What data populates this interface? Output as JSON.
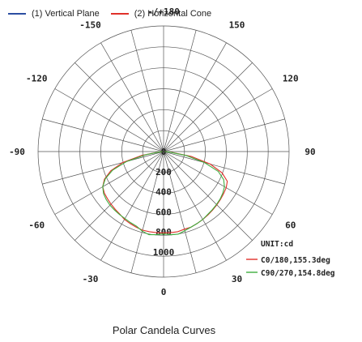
{
  "legend": {
    "vertical_label": "(1) Vertical Plane",
    "horizontal_label": "(2) Horizontal Cone"
  },
  "caption": "Polar Candela Curves",
  "chart_data": {
    "type": "polar",
    "title": "Polar Candela Curves",
    "angle_labels": [
      {
        "text": "-/+180",
        "angle": 180
      },
      {
        "text": "150",
        "angle": 150
      },
      {
        "text": "-150",
        "angle": -150
      },
      {
        "text": "120",
        "angle": 120
      },
      {
        "text": "-120",
        "angle": -120
      },
      {
        "text": "90",
        "angle": 90
      },
      {
        "text": "-90",
        "angle": -90
      },
      {
        "text": "60",
        "angle": 60
      },
      {
        "text": "-60",
        "angle": -60
      },
      {
        "text": "30",
        "angle": 30
      },
      {
        "text": "-30",
        "angle": -30
      },
      {
        "text": "0",
        "angle": 0
      }
    ],
    "radial_ticks": [
      200,
      400,
      600,
      800,
      1000
    ],
    "rmax": 1250,
    "annotations": {
      "unit": "UNIT:cd",
      "c0": "C0/180,155.3deg",
      "c90": "C90/270,154.8deg"
    },
    "colors": {
      "vertical": "#2b4ea2",
      "horizontal": "#e0302a",
      "green": "#3fae3f",
      "grid": "#555555"
    },
    "series": [
      {
        "key": "c0",
        "color": "#e0302a",
        "points": [
          [
            -90,
            10
          ],
          [
            -85,
            50
          ],
          [
            -80,
            220
          ],
          [
            -75,
            420
          ],
          [
            -70,
            560
          ],
          [
            -65,
            650
          ],
          [
            -60,
            700
          ],
          [
            -55,
            720
          ],
          [
            -50,
            730
          ],
          [
            -45,
            740
          ],
          [
            -40,
            750
          ],
          [
            -35,
            760
          ],
          [
            -30,
            780
          ],
          [
            -25,
            790
          ],
          [
            -20,
            800
          ],
          [
            -15,
            810
          ],
          [
            -10,
            810
          ],
          [
            -5,
            810
          ],
          [
            0,
            810
          ],
          [
            5,
            810
          ],
          [
            10,
            810
          ],
          [
            15,
            800
          ],
          [
            20,
            800
          ],
          [
            25,
            790
          ],
          [
            30,
            780
          ],
          [
            35,
            770
          ],
          [
            40,
            760
          ],
          [
            45,
            750
          ],
          [
            50,
            740
          ],
          [
            55,
            730
          ],
          [
            60,
            720
          ],
          [
            65,
            700
          ],
          [
            70,
            620
          ],
          [
            75,
            480
          ],
          [
            80,
            280
          ],
          [
            85,
            80
          ],
          [
            90,
            10
          ]
        ]
      },
      {
        "key": "c90",
        "color": "#3fae3f",
        "points": [
          [
            -90,
            10
          ],
          [
            -85,
            40
          ],
          [
            -80,
            180
          ],
          [
            -75,
            380
          ],
          [
            -70,
            540
          ],
          [
            -65,
            640
          ],
          [
            -60,
            700
          ],
          [
            -55,
            730
          ],
          [
            -50,
            745
          ],
          [
            -45,
            755
          ],
          [
            -40,
            760
          ],
          [
            -35,
            765
          ],
          [
            -30,
            770
          ],
          [
            -25,
            780
          ],
          [
            -20,
            790
          ],
          [
            -15,
            820
          ],
          [
            -10,
            840
          ],
          [
            -5,
            830
          ],
          [
            0,
            820
          ],
          [
            5,
            830
          ],
          [
            10,
            835
          ],
          [
            15,
            815
          ],
          [
            20,
            800
          ],
          [
            25,
            790
          ],
          [
            30,
            780
          ],
          [
            35,
            765
          ],
          [
            40,
            755
          ],
          [
            45,
            745
          ],
          [
            50,
            735
          ],
          [
            55,
            720
          ],
          [
            60,
            700
          ],
          [
            65,
            660
          ],
          [
            70,
            580
          ],
          [
            75,
            420
          ],
          [
            80,
            230
          ],
          [
            85,
            60
          ],
          [
            90,
            10
          ]
        ]
      }
    ]
  }
}
